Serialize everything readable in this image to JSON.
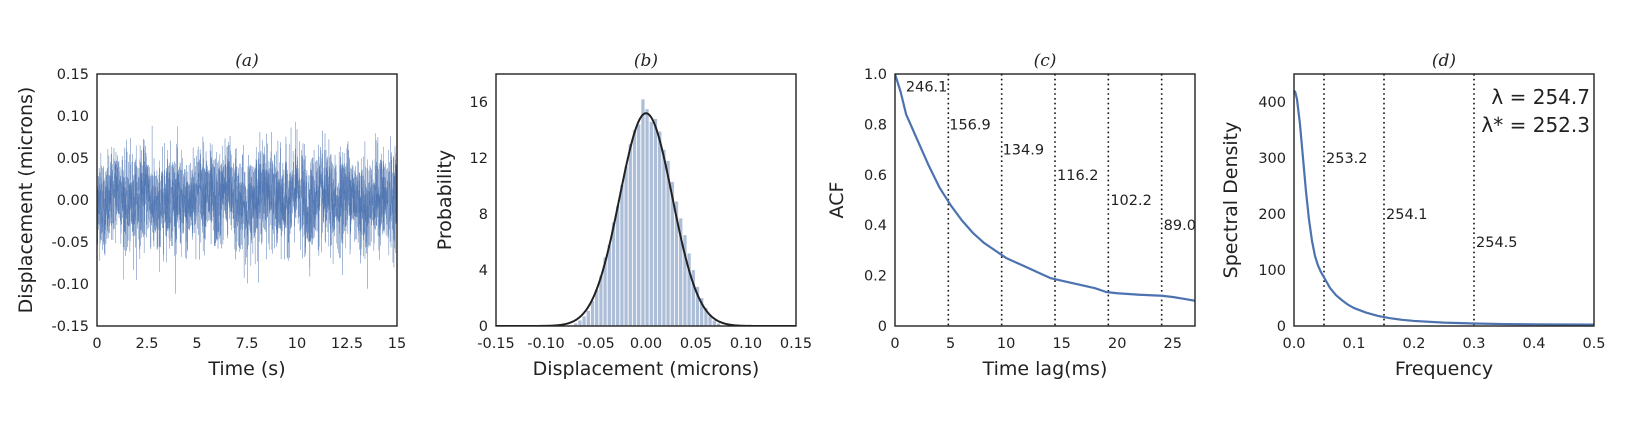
{
  "chart_data": [
    {
      "panel": "a",
      "type": "line",
      "title": "(a)",
      "xlabel": "Time (s)",
      "ylabel": "Displacement (microns)",
      "xlim": [
        0,
        15
      ],
      "ylim": [
        -0.15,
        0.15
      ],
      "xticks": [
        "0",
        "2.5",
        "5",
        "7.5",
        "10",
        "12.5",
        "15"
      ],
      "yticks": [
        "-0.15",
        "-0.10",
        "-0.05",
        "0.00",
        "0.05",
        "0.10",
        "0.15"
      ],
      "grid": false,
      "color": "#4c72b0",
      "series": [
        {
          "x": [
            0,
            0.5,
            1,
            1.5,
            2,
            2.5,
            3,
            3.5,
            4,
            4.5,
            5,
            5.5,
            6,
            6.5,
            7,
            7.5,
            8,
            8.5,
            9,
            9.5,
            10,
            10.5,
            11,
            11.5,
            12,
            12.5,
            13,
            13.5,
            14,
            14.5,
            15
          ],
          "y": [
            0.01,
            -0.02,
            0.03,
            -0.01,
            0.0,
            0.02,
            -0.03,
            0.01,
            0.0,
            -0.02,
            0.02,
            0.01,
            -0.01,
            0.03,
            0.0,
            -0.02,
            0.01,
            0.02,
            -0.01,
            0.0,
            0.02,
            -0.02,
            0.01,
            0.0,
            -0.01,
            0.02,
            0.0,
            -0.02,
            0.01,
            0.0,
            0.01
          ]
        }
      ]
    },
    {
      "panel": "b",
      "type": "bar",
      "title": "(b)",
      "xlabel": "Displacement (microns)",
      "ylabel": "Probability",
      "xlim": [
        -0.15,
        0.15
      ],
      "ylim": [
        0,
        18
      ],
      "xticks": [
        "-0.15",
        "-0.10",
        "-0.05",
        "0.00",
        "0.05",
        "0.10",
        "0.15"
      ],
      "yticks": [
        "0",
        "4",
        "8",
        "12",
        "16"
      ],
      "grid": false,
      "histogram": {
        "bin_width": 0.0042,
        "centers": [
          -0.07,
          -0.0658,
          -0.0616,
          -0.0574,
          -0.0532,
          -0.049,
          -0.0448,
          -0.0406,
          -0.0364,
          -0.0322,
          -0.028,
          -0.0238,
          -0.0196,
          -0.0154,
          -0.0112,
          -0.007,
          -0.0028,
          0.0014,
          0.0056,
          0.0098,
          0.014,
          0.0182,
          0.0224,
          0.0266,
          0.0308,
          0.035,
          0.0392,
          0.0434,
          0.0476,
          0.0518,
          0.056,
          0.0602,
          0.0644,
          0.0686,
          0.0728
        ],
        "values": [
          0.2,
          0.4,
          0.7,
          1.1,
          1.8,
          2.6,
          3.6,
          4.9,
          5.8,
          7.4,
          8.6,
          10.1,
          11.4,
          13.0,
          14.0,
          14.4,
          16.2,
          15.5,
          14.6,
          14.8,
          13.9,
          12.6,
          11.8,
          10.3,
          8.9,
          7.7,
          6.5,
          5.2,
          4.0,
          2.8,
          2.0,
          1.3,
          0.8,
          0.4,
          0.2
        ],
        "color": "#9fb3d1"
      },
      "fit": {
        "type": "gaussian",
        "mean": 0.0,
        "std": 0.0263,
        "peak": 15.2,
        "color": "#222222"
      }
    },
    {
      "panel": "c",
      "type": "line",
      "title": "(c)",
      "xlabel": "Time lag(ms)",
      "ylabel": "ACF",
      "xlim": [
        0,
        27
      ],
      "ylim": [
        0,
        1.0
      ],
      "xticks": [
        0,
        5,
        10,
        15,
        20,
        25
      ],
      "yticks": [
        "0",
        "0.2",
        "0.4",
        "0.6",
        "0.8",
        "1.0"
      ],
      "grid": false,
      "color": "#4c72b0",
      "series": [
        {
          "x": [
            0,
            0.5,
            1,
            2,
            3,
            4,
            5,
            6,
            7,
            8,
            9,
            10,
            11,
            12,
            13,
            14,
            15,
            16,
            17,
            18,
            19,
            20,
            21,
            22,
            23,
            24,
            25,
            26,
            27
          ],
          "y": [
            1.0,
            0.93,
            0.84,
            0.74,
            0.64,
            0.55,
            0.48,
            0.42,
            0.37,
            0.33,
            0.3,
            0.27,
            0.25,
            0.23,
            0.21,
            0.19,
            0.18,
            0.17,
            0.16,
            0.15,
            0.135,
            0.13,
            0.127,
            0.124,
            0.122,
            0.12,
            0.115,
            0.108,
            0.1
          ]
        }
      ],
      "vlines": [
        4.8,
        9.6,
        14.4,
        19.2,
        24.0
      ],
      "annotations": [
        {
          "text": "246.1",
          "x": 0.8,
          "y": 0.95
        },
        {
          "text": "156.9",
          "x": 4.7,
          "y": 0.8
        },
        {
          "text": "134.9",
          "x": 9.5,
          "y": 0.7
        },
        {
          "text": "116.2",
          "x": 14.4,
          "y": 0.6
        },
        {
          "text": "102.2",
          "x": 19.2,
          "y": 0.5
        },
        {
          "text": "89.0",
          "x": 24.0,
          "y": 0.4
        }
      ]
    },
    {
      "panel": "d",
      "type": "line",
      "title": "(d)",
      "xlabel": "Frequency",
      "ylabel": "Spectral Density",
      "xlim": [
        0,
        0.5
      ],
      "ylim": [
        0,
        450
      ],
      "xticks": [
        "0.0",
        "0.1",
        "0.2",
        "0.3",
        "0.4",
        "0.5"
      ],
      "yticks": [
        "0",
        "100",
        "200",
        "300",
        "400"
      ],
      "grid": false,
      "color": "#4c72b0",
      "series": [
        {
          "x": [
            0,
            0.002,
            0.005,
            0.01,
            0.015,
            0.02,
            0.025,
            0.03,
            0.035,
            0.04,
            0.045,
            0.05,
            0.06,
            0.07,
            0.08,
            0.09,
            0.1,
            0.12,
            0.14,
            0.16,
            0.18,
            0.2,
            0.25,
            0.3,
            0.35,
            0.4,
            0.45,
            0.5
          ],
          "y": [
            420,
            418,
            405,
            360,
            300,
            240,
            190,
            152,
            125,
            108,
            96,
            87,
            68,
            55,
            46,
            38,
            32,
            24,
            18,
            14,
            11,
            9,
            6,
            4.5,
            3.5,
            3,
            2.7,
            2.5
          ]
        }
      ],
      "vlines": [
        0.05,
        0.15,
        0.3
      ],
      "annotations": [
        {
          "text": "253.2",
          "x": 0.05,
          "y": 300
        },
        {
          "text": "254.1",
          "x": 0.15,
          "y": 200
        },
        {
          "text": "254.5",
          "x": 0.3,
          "y": 150
        }
      ],
      "lambda_text": [
        "λ = 254.7",
        "λ* = 252.3"
      ]
    }
  ]
}
